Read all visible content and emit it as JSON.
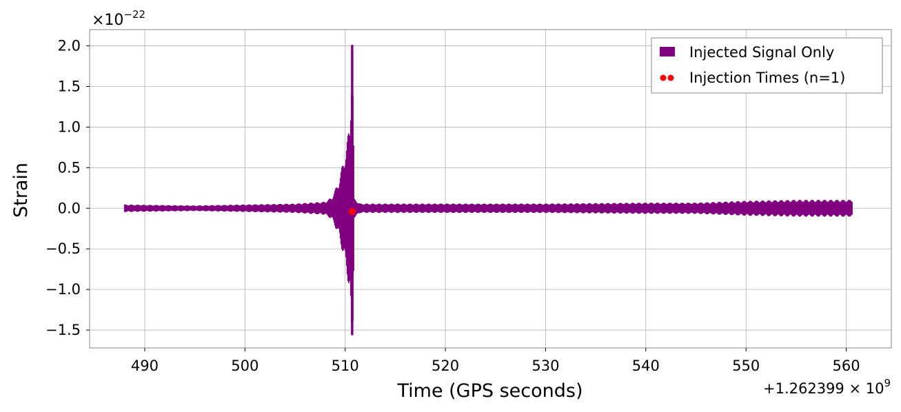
{
  "chart_data": {
    "type": "line",
    "xlabel": "Time (GPS seconds)",
    "ylabel": "Strain",
    "y_multiplier": "×10",
    "y_multiplier_exp": "−22",
    "x_offset": "+1.262399 × 10",
    "x_offset_exp": "9",
    "xlim": [
      484.5,
      564.5
    ],
    "ylim": [
      -1.72,
      2.2
    ],
    "x_ticks": [
      490,
      500,
      510,
      520,
      530,
      540,
      550,
      560
    ],
    "x_tick_labels": [
      "490",
      "500",
      "510",
      "520",
      "530",
      "540",
      "550",
      "560"
    ],
    "y_ticks": [
      -1.5,
      -1.0,
      -0.5,
      0.0,
      0.5,
      1.0,
      1.5,
      2.0
    ],
    "y_tick_labels": [
      "−1.5",
      "−1.0",
      "−0.5",
      "0.0",
      "0.5",
      "1.0",
      "1.5",
      "2.0"
    ],
    "grid": true,
    "legend_position": "top-right",
    "series": [
      {
        "name": "Injected Signal Only",
        "color": "#800080",
        "x_range": [
          488.0,
          560.6
        ],
        "merger_time": 510.7,
        "peak_max": 2.0,
        "peak_min": -1.55,
        "envelope": [
          {
            "x": 488.0,
            "amp": 0.04
          },
          {
            "x": 495.0,
            "amp": 0.03
          },
          {
            "x": 500.0,
            "amp": 0.04
          },
          {
            "x": 505.0,
            "amp": 0.05
          },
          {
            "x": 508.0,
            "amp": 0.07
          },
          {
            "x": 508.7,
            "amp": 0.12
          },
          {
            "x": 509.4,
            "amp": 0.3
          },
          {
            "x": 509.9,
            "amp": 0.55
          },
          {
            "x": 510.2,
            "amp": 0.72
          },
          {
            "x": 510.5,
            "amp": 0.92
          },
          {
            "x": 510.7,
            "amp": 2.0
          },
          {
            "x": 510.9,
            "amp": 0.1
          },
          {
            "x": 511.5,
            "amp": 0.05
          },
          {
            "x": 520.0,
            "amp": 0.05
          },
          {
            "x": 530.0,
            "amp": 0.05
          },
          {
            "x": 540.0,
            "amp": 0.06
          },
          {
            "x": 545.0,
            "amp": 0.06
          },
          {
            "x": 550.0,
            "amp": 0.08
          },
          {
            "x": 555.0,
            "amp": 0.09
          },
          {
            "x": 560.6,
            "amp": 0.09
          }
        ]
      },
      {
        "name": "Injection Times (n=1)",
        "color": "#ff0000",
        "type": "scatter",
        "points": [
          {
            "x": 510.7,
            "y": -0.04
          }
        ]
      }
    ]
  }
}
